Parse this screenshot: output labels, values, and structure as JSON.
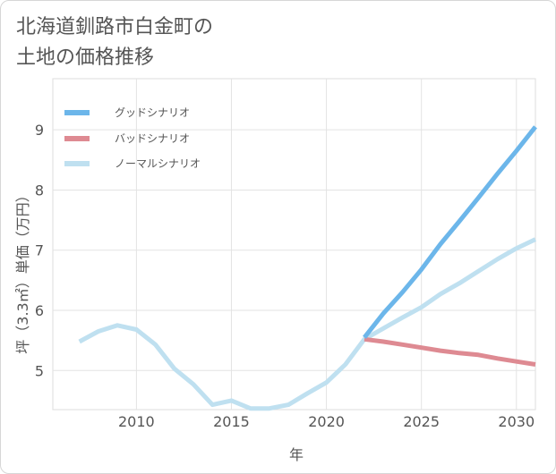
{
  "title_line1": "北海道釧路市白金町の",
  "title_line2": "土地の価格推移",
  "chart_data": {
    "type": "line",
    "title": "北海道釧路市白金町の土地の価格推移",
    "xlabel": "年",
    "ylabel": "坪（3.3㎡）単価（万円）",
    "xlim": [
      2005.6,
      2031
    ],
    "ylim": [
      4.35,
      9.85
    ],
    "xticks": [
      2010,
      2015,
      2020,
      2025,
      2030
    ],
    "yticks": [
      5,
      6,
      7,
      8,
      9
    ],
    "grid": true,
    "legend_position": "top-left",
    "series": [
      {
        "name": "グッドシナリオ",
        "color": "#6cb6ea",
        "x": [
          2022,
          2023,
          2024,
          2025,
          2026,
          2027,
          2028,
          2029,
          2030,
          2031
        ],
        "y": [
          5.55,
          5.95,
          6.3,
          6.68,
          7.1,
          7.48,
          7.87,
          8.27,
          8.65,
          9.05
        ]
      },
      {
        "name": "バッドシナリオ",
        "color": "#de8a92",
        "x": [
          2022,
          2023,
          2024,
          2025,
          2026,
          2027,
          2028,
          2029,
          2030,
          2031
        ],
        "y": [
          5.52,
          5.48,
          5.43,
          5.38,
          5.33,
          5.29,
          5.26,
          5.2,
          5.15,
          5.1
        ]
      },
      {
        "name": "ノーマルシナリオ",
        "color": "#bfe0f0",
        "x": [
          2007,
          2008,
          2009,
          2010,
          2011,
          2012,
          2013,
          2014,
          2015,
          2016,
          2017,
          2018,
          2019,
          2020,
          2021,
          2022,
          2023,
          2024,
          2025,
          2026,
          2027,
          2028,
          2029,
          2030,
          2031
        ],
        "y": [
          5.48,
          5.65,
          5.75,
          5.68,
          5.43,
          5.03,
          4.77,
          4.43,
          4.5,
          4.37,
          4.37,
          4.43,
          4.62,
          4.8,
          5.1,
          5.52,
          5.7,
          5.88,
          6.05,
          6.27,
          6.45,
          6.65,
          6.85,
          7.03,
          7.18
        ]
      }
    ]
  }
}
